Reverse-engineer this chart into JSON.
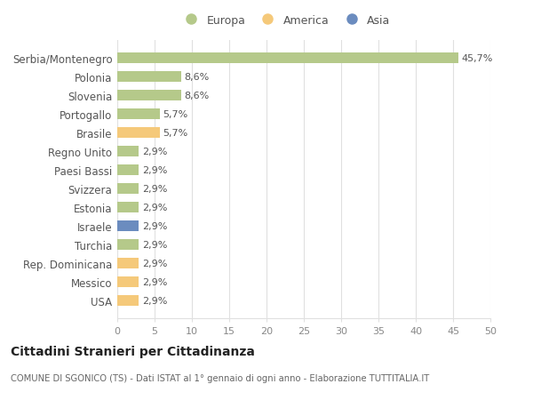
{
  "categories": [
    "USA",
    "Messico",
    "Rep. Dominicana",
    "Turchia",
    "Israele",
    "Estonia",
    "Svizzera",
    "Paesi Bassi",
    "Regno Unito",
    "Brasile",
    "Portogallo",
    "Slovenia",
    "Polonia",
    "Serbia/Montenegro"
  ],
  "values": [
    2.9,
    2.9,
    2.9,
    2.9,
    2.9,
    2.9,
    2.9,
    2.9,
    2.9,
    5.7,
    5.7,
    8.6,
    8.6,
    45.7
  ],
  "labels": [
    "2,9%",
    "2,9%",
    "2,9%",
    "2,9%",
    "2,9%",
    "2,9%",
    "2,9%",
    "2,9%",
    "2,9%",
    "5,7%",
    "5,7%",
    "8,6%",
    "8,6%",
    "45,7%"
  ],
  "colors": [
    "#f5c97a",
    "#f5c97a",
    "#f5c97a",
    "#b5c98a",
    "#6b8cbf",
    "#b5c98a",
    "#b5c98a",
    "#b5c98a",
    "#b5c98a",
    "#f5c97a",
    "#b5c98a",
    "#b5c98a",
    "#b5c98a",
    "#b5c98a"
  ],
  "europa_color": "#b5c98a",
  "america_color": "#f5c97a",
  "asia_color": "#6b8cbf",
  "xlim": [
    0,
    50
  ],
  "xticks": [
    0,
    5,
    10,
    15,
    20,
    25,
    30,
    35,
    40,
    45,
    50
  ],
  "title": "Cittadini Stranieri per Cittadinanza",
  "subtitle": "COMUNE DI SGONICO (TS) - Dati ISTAT al 1° gennaio di ogni anno - Elaborazione TUTTITALIA.IT",
  "legend_labels": [
    "Europa",
    "America",
    "Asia"
  ],
  "bg_color": "#ffffff",
  "grid_color": "#e0e0e0",
  "label_color": "#555555",
  "tick_color": "#888888"
}
